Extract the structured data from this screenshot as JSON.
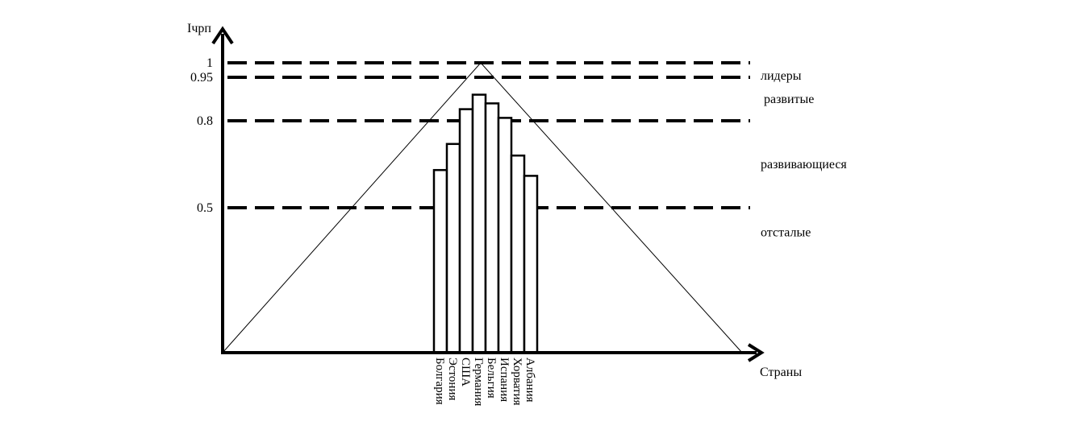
{
  "chart_data": {
    "type": "bar",
    "ylabel": "Iчрп",
    "xlabel": "Страны",
    "ylim": [
      0,
      1
    ],
    "yticks": [
      1,
      0.95,
      0.8,
      0.5
    ],
    "thresholds": [
      1,
      0.95,
      0.8,
      0.5
    ],
    "zones": [
      "лидеры",
      "развитые",
      "развивающиеся",
      "отсталые"
    ],
    "categories": [
      "Болгария",
      "Эстония",
      "США",
      "Германия",
      "Бельгия",
      "Испания",
      "Хорватия",
      "Албания"
    ],
    "values": [
      0.63,
      0.72,
      0.84,
      0.89,
      0.86,
      0.81,
      0.68,
      0.61
    ],
    "triangle_peak": 1,
    "grid": false,
    "legend": "none"
  }
}
